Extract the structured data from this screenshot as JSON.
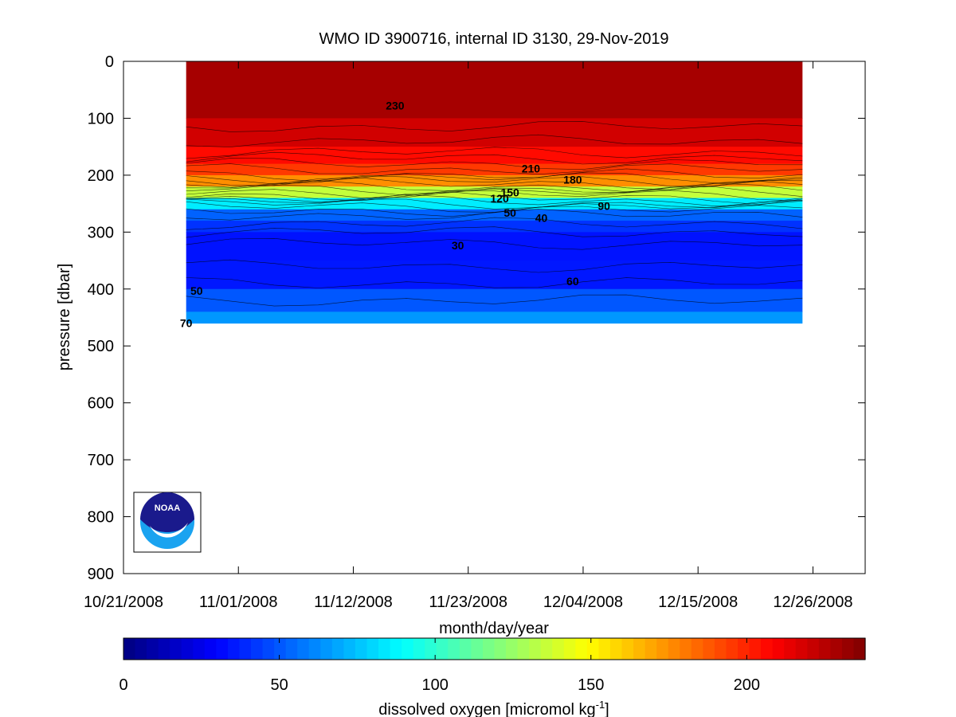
{
  "chart_data": {
    "type": "heatmap",
    "title": "WMO ID 3900716, internal ID 3130, 29-Nov-2019",
    "xlabel": "month/day/year",
    "ylabel": "pressure [dbar]",
    "x_ticks": [
      "10/21/2008",
      "11/01/2008",
      "11/12/2008",
      "11/23/2008",
      "12/04/2008",
      "12/15/2008",
      "12/26/2008"
    ],
    "y_ticks": [
      "0",
      "100",
      "200",
      "300",
      "400",
      "500",
      "600",
      "700",
      "800",
      "900"
    ],
    "ylim": [
      900,
      0
    ],
    "y_reversed": true,
    "xlim": [
      "10/21/2008",
      "12/31/2008"
    ],
    "data_range": {
      "start": "10/27/2008",
      "end": "12/25/2008",
      "max_pressure": 460
    },
    "colormap": "jet",
    "colorbar": {
      "label": "dissolved oxygen [micromol kg",
      "label_superscript": "-1",
      "label_end": "]",
      "ticks": [
        "0",
        "50",
        "100",
        "150",
        "200"
      ],
      "range": [
        0,
        238
      ]
    },
    "profile": {
      "pressure": [
        0,
        100,
        150,
        180,
        200,
        220,
        240,
        260,
        280,
        300,
        350,
        400,
        440,
        460
      ],
      "oxygen": [
        232,
        226,
        212,
        200,
        190,
        160,
        110,
        60,
        45,
        38,
        30,
        40,
        60,
        70
      ]
    },
    "contour_labels": [
      {
        "text": "230",
        "date": "11/16/2008",
        "pressure": 85
      },
      {
        "text": "210",
        "date": "11/29/2008",
        "pressure": 195
      },
      {
        "text": "180",
        "date": "12/03/2008",
        "pressure": 215
      },
      {
        "text": "150",
        "date": "11/27/2008",
        "pressure": 237
      },
      {
        "text": "120",
        "date": "11/26/2008",
        "pressure": 248
      },
      {
        "text": "90",
        "date": "12/06/2008",
        "pressure": 261
      },
      {
        "text": "50",
        "date": "11/27/2008",
        "pressure": 273
      },
      {
        "text": "40",
        "date": "11/30/2008",
        "pressure": 282
      },
      {
        "text": "30",
        "date": "11/22/2008",
        "pressure": 330
      },
      {
        "text": "50",
        "date": "10/28/2008",
        "pressure": 410
      },
      {
        "text": "60",
        "date": "12/03/2008",
        "pressure": 393
      },
      {
        "text": "70",
        "date": "10/27/2008",
        "pressure": 467
      }
    ]
  },
  "logo": {
    "text": "NOAA",
    "colors": {
      "navy": "#1a1a8c",
      "sky": "#1aa3f0"
    }
  }
}
